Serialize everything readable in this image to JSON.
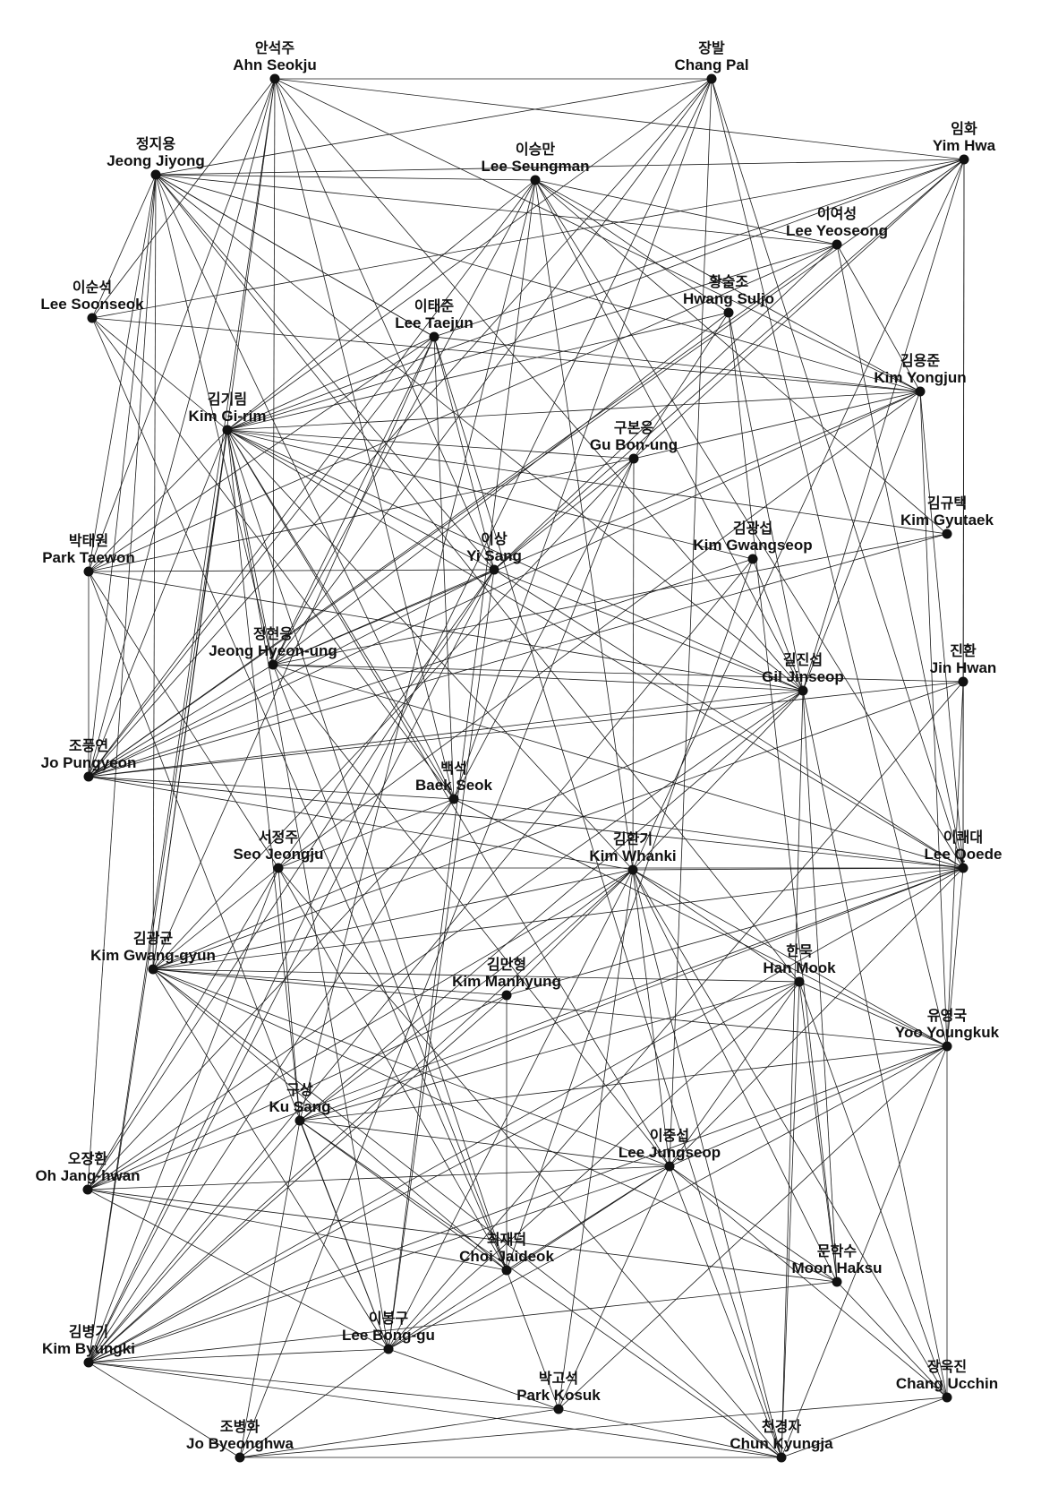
{
  "nodes": [
    {
      "id": "ahn",
      "ko": "안석주",
      "en": "Ahn Seokju"
    },
    {
      "id": "changpal",
      "ko": "장발",
      "en": "Chang Pal"
    },
    {
      "id": "jeongjiyong",
      "ko": "정지용",
      "en": "Jeong Jiyong"
    },
    {
      "id": "seungman",
      "ko": "이승만",
      "en": "Lee Seungman"
    },
    {
      "id": "yimhwa",
      "ko": "임화",
      "en": "Yim Hwa"
    },
    {
      "id": "yeoseong",
      "ko": "이여성",
      "en": "Lee Yeoseong"
    },
    {
      "id": "soonseok",
      "ko": "이순석",
      "en": "Lee Soonseok"
    },
    {
      "id": "suljo",
      "ko": "황술조",
      "en": "Hwang Suljo"
    },
    {
      "id": "taejun",
      "ko": "이태준",
      "en": "Lee Taejun"
    },
    {
      "id": "yongjun",
      "ko": "김용준",
      "en": "Kim Yongjun"
    },
    {
      "id": "girim",
      "ko": "김기림",
      "en": "Kim Gi-rim"
    },
    {
      "id": "bonung",
      "ko": "구본웅",
      "en": "Gu Bon-ung"
    },
    {
      "id": "gyutaek",
      "ko": "김규택",
      "en": "Kim Gyutaek"
    },
    {
      "id": "taewon",
      "ko": "박태원",
      "en": "Park Taewon"
    },
    {
      "id": "yisang",
      "ko": "이상",
      "en": "Yi Sang"
    },
    {
      "id": "gwangseop",
      "ko": "김광섭",
      "en": "Kim Gwangseop"
    },
    {
      "id": "hyeonung",
      "ko": "정현웅",
      "en": "Jeong Hyeon-ung"
    },
    {
      "id": "jinseop",
      "ko": "길진섭",
      "en": "Gil Jinseop"
    },
    {
      "id": "jinhwan",
      "ko": "진환",
      "en": "Jin Hwan"
    },
    {
      "id": "pungyeon",
      "ko": "조풍연",
      "en": "Jo Pungyeon"
    },
    {
      "id": "baekseok",
      "ko": "백석",
      "en": "Baek Seok"
    },
    {
      "id": "jeongju",
      "ko": "서정주",
      "en": "Seo Jeongju"
    },
    {
      "id": "whanki",
      "ko": "김환기",
      "en": "Kim Whanki"
    },
    {
      "id": "qoede",
      "ko": "이쾌대",
      "en": "Lee Qoede"
    },
    {
      "id": "gwanggyun",
      "ko": "김광균",
      "en": "Kim Gwang-gyun"
    },
    {
      "id": "manhyung",
      "ko": "김만형",
      "en": "Kim Manhyung"
    },
    {
      "id": "hanmook",
      "ko": "한묵",
      "en": "Han Mook"
    },
    {
      "id": "youngkuk",
      "ko": "유영국",
      "en": "Yoo Youngkuk"
    },
    {
      "id": "kusang",
      "ko": "구상",
      "en": "Ku Sang"
    },
    {
      "id": "jungseop",
      "ko": "이중섭",
      "en": "Lee Jungseop"
    },
    {
      "id": "janghwan",
      "ko": "오장환",
      "en": "Oh Jang-hwan"
    },
    {
      "id": "jaideok",
      "ko": "최재덕",
      "en": "Choi Jaideok"
    },
    {
      "id": "haksu",
      "ko": "문학수",
      "en": "Moon Haksu"
    },
    {
      "id": "byungki",
      "ko": "김병기",
      "en": "Kim Byungki"
    },
    {
      "id": "bonggu",
      "ko": "이봉구",
      "en": "Lee Bong-gu"
    },
    {
      "id": "ucchin",
      "ko": "장욱진",
      "en": "Chang Ucchin"
    },
    {
      "id": "kosuk",
      "ko": "박고석",
      "en": "Park Kosuk"
    },
    {
      "id": "byeonghwa",
      "ko": "조병화",
      "en": "Jo Byeonghwa"
    },
    {
      "id": "kyungja",
      "ko": "천경자",
      "en": "Chun Kyungja"
    }
  ],
  "edges": [
    [
      "ahn",
      "changpal"
    ],
    [
      "ahn",
      "yimhwa"
    ],
    [
      "ahn",
      "yongjun"
    ],
    [
      "ahn",
      "hyeonung"
    ],
    [
      "ahn",
      "pungyeon"
    ],
    [
      "ahn",
      "taewon"
    ],
    [
      "ahn",
      "yisang"
    ],
    [
      "ahn",
      "gwanggyun"
    ],
    [
      "ahn",
      "jinseop"
    ],
    [
      "ahn",
      "soonseok"
    ],
    [
      "ahn",
      "baekseok"
    ],
    [
      "ahn",
      "byungki"
    ],
    [
      "changpal",
      "jeongjiyong"
    ],
    [
      "changpal",
      "girim"
    ],
    [
      "changpal",
      "hyeonung"
    ],
    [
      "changpal",
      "qoede"
    ],
    [
      "changpal",
      "youngkuk"
    ],
    [
      "changpal",
      "jungseop"
    ],
    [
      "changpal",
      "byungki"
    ],
    [
      "changpal",
      "baekseok"
    ],
    [
      "changpal",
      "pungyeon"
    ],
    [
      "jeongjiyong",
      "seungman"
    ],
    [
      "jeongjiyong",
      "yeoseong"
    ],
    [
      "jeongjiyong",
      "yongjun"
    ],
    [
      "jeongjiyong",
      "taejun"
    ],
    [
      "jeongjiyong",
      "jinseop"
    ],
    [
      "jeongjiyong",
      "soonseok"
    ],
    [
      "jeongjiyong",
      "taewon"
    ],
    [
      "jeongjiyong",
      "pungyeon"
    ],
    [
      "jeongjiyong",
      "baekseok"
    ],
    [
      "jeongjiyong",
      "gwanggyun"
    ],
    [
      "jeongjiyong",
      "yisang"
    ],
    [
      "jeongjiyong",
      "janghwan"
    ],
    [
      "jeongjiyong",
      "hanmook"
    ],
    [
      "jeongjiyong",
      "hyeonung"
    ],
    [
      "jeongjiyong",
      "yimhwa"
    ],
    [
      "seungman",
      "suljo"
    ],
    [
      "seungman",
      "yongjun"
    ],
    [
      "seungman",
      "whanki"
    ],
    [
      "seungman",
      "qoede"
    ],
    [
      "seungman",
      "girim"
    ],
    [
      "seungman",
      "hyeonung"
    ],
    [
      "seungman",
      "pungyeon"
    ],
    [
      "seungman",
      "jinseop"
    ],
    [
      "seungman",
      "kusang"
    ],
    [
      "seungman",
      "yeoseong"
    ],
    [
      "seungman",
      "gyutaek"
    ],
    [
      "seungman",
      "bonggu"
    ],
    [
      "yimhwa",
      "soonseok"
    ],
    [
      "yimhwa",
      "girim"
    ],
    [
      "yimhwa",
      "pungyeon"
    ],
    [
      "yimhwa",
      "qoede"
    ],
    [
      "yimhwa",
      "taejun"
    ],
    [
      "yimhwa",
      "jinhwan"
    ],
    [
      "yimhwa",
      "bonung"
    ],
    [
      "yimhwa",
      "yisang"
    ],
    [
      "yimhwa",
      "jinseop"
    ],
    [
      "yimhwa",
      "whanki"
    ],
    [
      "yeoseong",
      "taewon"
    ],
    [
      "yeoseong",
      "yongjun"
    ],
    [
      "yeoseong",
      "qoede"
    ],
    [
      "yeoseong",
      "girim"
    ],
    [
      "yeoseong",
      "yisang"
    ],
    [
      "yeoseong",
      "pungyeon"
    ],
    [
      "soonseok",
      "yongjun"
    ],
    [
      "soonseok",
      "girim"
    ],
    [
      "soonseok",
      "jaideok"
    ],
    [
      "soonseok",
      "baekseok"
    ],
    [
      "suljo",
      "jinseop"
    ],
    [
      "suljo",
      "hyeonung"
    ],
    [
      "suljo",
      "girim"
    ],
    [
      "suljo",
      "haksu"
    ],
    [
      "suljo",
      "bonung"
    ],
    [
      "taejun",
      "jeongjiyong"
    ],
    [
      "taejun",
      "yongjun"
    ],
    [
      "taejun",
      "girim"
    ],
    [
      "taejun",
      "hyeonung"
    ],
    [
      "taejun",
      "yisang"
    ],
    [
      "taejun",
      "pungyeon"
    ],
    [
      "taejun",
      "baekseok"
    ],
    [
      "taejun",
      "taewon"
    ],
    [
      "taejun",
      "gwanggyun"
    ],
    [
      "taejun",
      "kyungja"
    ],
    [
      "yongjun",
      "girim"
    ],
    [
      "yongjun",
      "bonung"
    ],
    [
      "yongjun",
      "pungyeon"
    ],
    [
      "yongjun",
      "qoede"
    ],
    [
      "yongjun",
      "jinseop"
    ],
    [
      "yongjun",
      "jeongju"
    ],
    [
      "yongjun",
      "hyeonung"
    ],
    [
      "yongjun",
      "youngkuk"
    ],
    [
      "girim",
      "bonung"
    ],
    [
      "girim",
      "gwangseop"
    ],
    [
      "girim",
      "gyutaek"
    ],
    [
      "girim",
      "yisang"
    ],
    [
      "girim",
      "hyeonung"
    ],
    [
      "girim",
      "jinseop"
    ],
    [
      "girim",
      "baekseok"
    ],
    [
      "girim",
      "whanki"
    ],
    [
      "girim",
      "gwanggyun"
    ],
    [
      "girim",
      "pungyeon"
    ],
    [
      "girim",
      "taewon"
    ],
    [
      "girim",
      "qoede"
    ],
    [
      "girim",
      "jungseop"
    ],
    [
      "girim",
      "jaideok"
    ],
    [
      "girim",
      "byungki"
    ],
    [
      "girim",
      "kusang"
    ],
    [
      "girim",
      "bonggu"
    ],
    [
      "bonung",
      "whanki"
    ],
    [
      "bonung",
      "taewon"
    ],
    [
      "bonung",
      "yisang"
    ],
    [
      "bonung",
      "gwanggyun"
    ],
    [
      "bonung",
      "byeonghwa"
    ],
    [
      "bonung",
      "baekseok"
    ],
    [
      "gyutaek",
      "hyeonung"
    ],
    [
      "gyutaek",
      "pungyeon"
    ],
    [
      "taewon",
      "yisang"
    ],
    [
      "taewon",
      "pungyeon"
    ],
    [
      "taewon",
      "jinseop"
    ],
    [
      "taewon",
      "jeongju"
    ],
    [
      "taewon",
      "bonggu"
    ],
    [
      "yisang",
      "hyeonung"
    ],
    [
      "yisang",
      "pungyeon"
    ],
    [
      "yisang",
      "janghwan"
    ],
    [
      "yisang",
      "byungki"
    ],
    [
      "yisang",
      "jeongju"
    ],
    [
      "yisang",
      "bonggu"
    ],
    [
      "yisang",
      "jinseop"
    ],
    [
      "yisang",
      "qoede"
    ],
    [
      "gwangseop",
      "jinseop"
    ],
    [
      "gwangseop",
      "pungyeon"
    ],
    [
      "gwangseop",
      "jaideok"
    ],
    [
      "gwangseop",
      "byungki"
    ],
    [
      "hyeonung",
      "jinseop"
    ],
    [
      "hyeonung",
      "pungyeon"
    ],
    [
      "hyeonung",
      "jinhwan"
    ],
    [
      "hyeonung",
      "jungseop"
    ],
    [
      "hyeonung",
      "jaideok"
    ],
    [
      "hyeonung",
      "qoede"
    ],
    [
      "jinseop",
      "pungyeon"
    ],
    [
      "jinseop",
      "whanki"
    ],
    [
      "jinseop",
      "janghwan"
    ],
    [
      "jinseop",
      "haksu"
    ],
    [
      "jinseop",
      "ucchin"
    ],
    [
      "jinseop",
      "kyungja"
    ],
    [
      "jinseop",
      "kusang"
    ],
    [
      "jinseop",
      "gwanggyun"
    ],
    [
      "jinhwan",
      "qoede"
    ],
    [
      "jinhwan",
      "pungyeon"
    ],
    [
      "jinhwan",
      "bonggu"
    ],
    [
      "jinhwan",
      "youngkuk"
    ],
    [
      "jinhwan",
      "gwanggyun"
    ],
    [
      "pungyeon",
      "baekseok"
    ],
    [
      "pungyeon",
      "whanki"
    ],
    [
      "pungyeon",
      "qoede"
    ],
    [
      "baekseok",
      "janghwan"
    ],
    [
      "baekseok",
      "byungki"
    ],
    [
      "baekseok",
      "qoede"
    ],
    [
      "baekseok",
      "jeongju"
    ],
    [
      "baekseok",
      "youngkuk"
    ],
    [
      "jeongju",
      "kusang"
    ],
    [
      "jeongju",
      "byungki"
    ],
    [
      "jeongju",
      "qoede"
    ],
    [
      "jeongju",
      "jaideok"
    ],
    [
      "jeongju",
      "kyungja"
    ],
    [
      "jeongju",
      "gwanggyun"
    ],
    [
      "jeongju",
      "janghwan"
    ],
    [
      "whanki",
      "gwanggyun"
    ],
    [
      "whanki",
      "manhyung"
    ],
    [
      "whanki",
      "hanmook"
    ],
    [
      "whanki",
      "youngkuk"
    ],
    [
      "whanki",
      "jungseop"
    ],
    [
      "whanki",
      "janghwan"
    ],
    [
      "whanki",
      "byungki"
    ],
    [
      "whanki",
      "bonggu"
    ],
    [
      "whanki",
      "kosuk"
    ],
    [
      "whanki",
      "kyungja"
    ],
    [
      "whanki",
      "haksu"
    ],
    [
      "whanki",
      "ucchin"
    ],
    [
      "whanki",
      "kusang"
    ],
    [
      "whanki",
      "qoede"
    ],
    [
      "qoede",
      "gwanggyun"
    ],
    [
      "qoede",
      "manhyung"
    ],
    [
      "qoede",
      "janghwan"
    ],
    [
      "qoede",
      "byungki"
    ],
    [
      "qoede",
      "jungseop"
    ],
    [
      "qoede",
      "kusang"
    ],
    [
      "qoede",
      "youngkuk"
    ],
    [
      "gwanggyun",
      "manhyung"
    ],
    [
      "gwanggyun",
      "hanmook"
    ],
    [
      "gwanggyun",
      "youngkuk"
    ],
    [
      "gwanggyun",
      "jungseop"
    ],
    [
      "gwanggyun",
      "jaideok"
    ],
    [
      "gwanggyun",
      "bonggu"
    ],
    [
      "gwanggyun",
      "haksu"
    ],
    [
      "gwanggyun",
      "kyungja"
    ],
    [
      "manhyung",
      "jaideok"
    ],
    [
      "manhyung",
      "janghwan"
    ],
    [
      "manhyung",
      "byungki"
    ],
    [
      "hanmook",
      "youngkuk"
    ],
    [
      "hanmook",
      "jungseop"
    ],
    [
      "hanmook",
      "kusang"
    ],
    [
      "hanmook",
      "bonggu"
    ],
    [
      "hanmook",
      "byungki"
    ],
    [
      "hanmook",
      "kyungja"
    ],
    [
      "hanmook",
      "haksu"
    ],
    [
      "hanmook",
      "ucchin"
    ],
    [
      "youngkuk",
      "kusang"
    ],
    [
      "youngkuk",
      "jungseop"
    ],
    [
      "youngkuk",
      "byungki"
    ],
    [
      "youngkuk",
      "kosuk"
    ],
    [
      "youngkuk",
      "ucchin"
    ],
    [
      "youngkuk",
      "bonggu"
    ],
    [
      "youngkuk",
      "kyungja"
    ],
    [
      "kusang",
      "jungseop"
    ],
    [
      "kusang",
      "bonggu"
    ],
    [
      "kusang",
      "byungki"
    ],
    [
      "kusang",
      "kyungja"
    ],
    [
      "kusang",
      "byeonghwa"
    ],
    [
      "kusang",
      "jaideok"
    ],
    [
      "jungseop",
      "janghwan"
    ],
    [
      "jungseop",
      "jaideok"
    ],
    [
      "jungseop",
      "byungki"
    ],
    [
      "jungseop",
      "bonggu"
    ],
    [
      "jungseop",
      "haksu"
    ],
    [
      "jungseop",
      "kosuk"
    ],
    [
      "jungseop",
      "kyungja"
    ],
    [
      "jungseop",
      "ucchin"
    ],
    [
      "janghwan",
      "jaideok"
    ],
    [
      "janghwan",
      "bonggu"
    ],
    [
      "janghwan",
      "haksu"
    ],
    [
      "jaideok",
      "kosuk"
    ],
    [
      "haksu",
      "byungki"
    ],
    [
      "haksu",
      "ucchin"
    ],
    [
      "byungki",
      "bonggu"
    ],
    [
      "byungki",
      "kosuk"
    ],
    [
      "byungki",
      "kyungja"
    ],
    [
      "byungki",
      "byeonghwa"
    ],
    [
      "bonggu",
      "kosuk"
    ],
    [
      "bonggu",
      "byeonghwa"
    ],
    [
      "kosuk",
      "byeonghwa"
    ],
    [
      "kosuk",
      "kyungja"
    ],
    [
      "byeonghwa",
      "kyungja"
    ],
    [
      "byeonghwa",
      "ucchin"
    ],
    [
      "ucchin",
      "kyungja"
    ]
  ]
}
